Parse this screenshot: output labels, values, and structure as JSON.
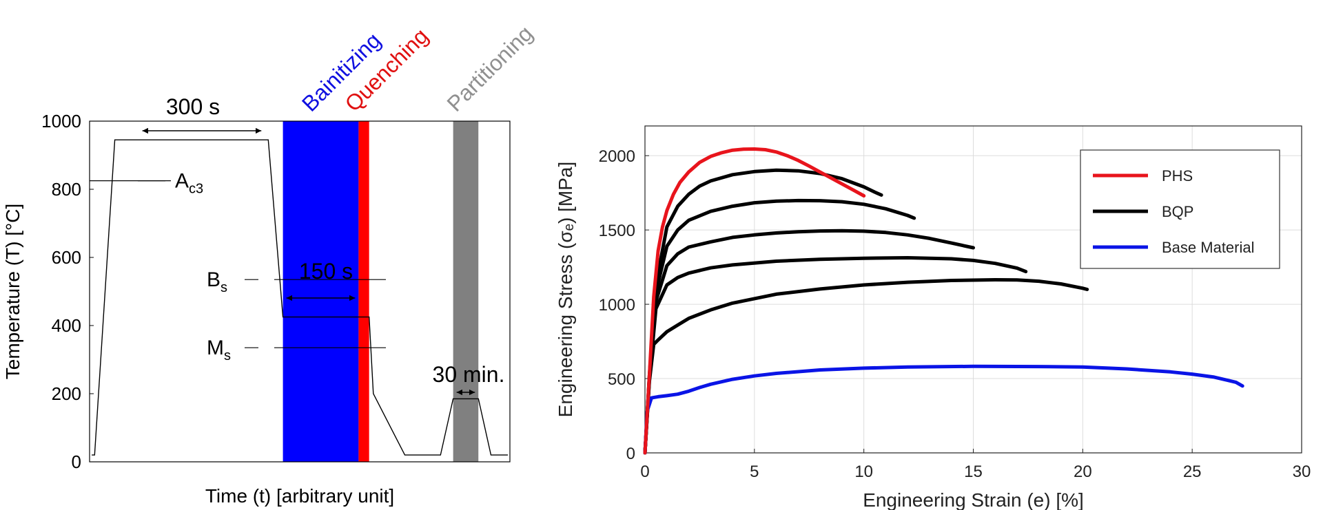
{
  "chart_data": [
    {
      "type": "line",
      "xlabel": "Time (t) [arbitrary unit]",
      "ylabel": "Temperature (T) [°C]",
      "ylim": [
        0,
        1000
      ],
      "yticks": [
        0,
        200,
        400,
        600,
        800,
        1000
      ],
      "xlim": [
        0,
        100
      ],
      "phases": [
        {
          "name": "Bainitizing",
          "x_start": 46.0,
          "x_end": 64.0,
          "color": "#0000ff",
          "label_color": "#1010e0"
        },
        {
          "name": "Quenching",
          "x_start": 64.0,
          "x_end": 66.5,
          "color": "#ff0000",
          "label_color": "#e01010"
        },
        {
          "name": "Partitioning",
          "x_start": 86.5,
          "x_end": 92.5,
          "color": "#808080",
          "label_color": "#909090"
        }
      ],
      "temperature_profile": {
        "x": [
          0.5,
          1.2,
          6.0,
          42.5,
          46.0,
          66.5,
          67.5,
          75.0,
          83.5,
          86.5,
          92.5,
          95.5,
          99.5
        ],
        "y": [
          20,
          20,
          945,
          945,
          425,
          425,
          200,
          20,
          20,
          185,
          185,
          20,
          20
        ]
      },
      "reference_lines": [
        {
          "label": "A",
          "subscript": "c3",
          "y": 825
        },
        {
          "label": "B",
          "subscript": "s",
          "y": 535
        },
        {
          "label": "M",
          "subscript": "s",
          "y": 335
        }
      ],
      "annotations": [
        {
          "text": "300 s",
          "x_start": 6.0,
          "x_end": 42.5,
          "y": 970
        },
        {
          "text": "150 s",
          "x_start": 46.0,
          "x_end": 64.0,
          "y": 480
        },
        {
          "text": "30 min.",
          "x_start": 86.5,
          "x_end": 92.5,
          "y": 205
        }
      ]
    },
    {
      "type": "line",
      "xlabel": "Engineering Strain (e) [%]",
      "ylabel": "Engineering Stress (σₑ) [MPa]",
      "xlim": [
        0,
        30
      ],
      "ylim": [
        0,
        2200
      ],
      "xticks": [
        0,
        5,
        10,
        15,
        20,
        25,
        30
      ],
      "yticks": [
        0,
        500,
        1000,
        1500,
        2000
      ],
      "grid": true,
      "legend_position": "top-right",
      "legend": [
        {
          "name": "PHS",
          "color": "#e8141c"
        },
        {
          "name": "BQP",
          "color": "#000000"
        },
        {
          "name": "Base Material",
          "color": "#0a14e6"
        }
      ],
      "series": [
        {
          "legend": "PHS",
          "color": "#e8141c",
          "x": [
            0,
            0.2,
            0.4,
            0.6,
            0.8,
            1.0,
            1.3,
            1.6,
            2.0,
            2.5,
            3.0,
            3.5,
            4.0,
            4.5,
            5.0,
            5.5,
            6.0,
            6.5,
            7.0,
            7.5,
            8.0,
            8.5,
            9.0,
            9.5,
            10.0
          ],
          "y": [
            0,
            520,
            1050,
            1360,
            1520,
            1630,
            1740,
            1820,
            1890,
            1955,
            1995,
            2020,
            2037,
            2044,
            2045,
            2040,
            2025,
            2000,
            1968,
            1930,
            1890,
            1850,
            1810,
            1770,
            1730
          ]
        },
        {
          "legend": "BQP",
          "color": "#000000",
          "x": [
            0,
            0.2,
            0.5,
            1.0,
            1.5,
            2.0,
            2.5,
            3.0,
            4.0,
            5.0,
            6.0,
            7.0,
            8.0,
            9.0,
            10.0,
            10.5,
            10.8
          ],
          "y": [
            0,
            520,
            1130,
            1520,
            1660,
            1740,
            1795,
            1830,
            1872,
            1893,
            1902,
            1898,
            1880,
            1845,
            1790,
            1755,
            1735
          ]
        },
        {
          "legend": "BQP",
          "color": "#000000",
          "x": [
            0,
            0.2,
            0.5,
            1.0,
            1.5,
            2.0,
            3.0,
            4.0,
            5.0,
            6.0,
            7.0,
            8.0,
            9.0,
            10.0,
            11.0,
            12.0,
            12.3
          ],
          "y": [
            0,
            510,
            1080,
            1390,
            1500,
            1565,
            1625,
            1660,
            1683,
            1694,
            1698,
            1697,
            1690,
            1673,
            1643,
            1598,
            1580
          ]
        },
        {
          "legend": "BQP",
          "color": "#000000",
          "x": [
            0,
            0.2,
            0.5,
            1.0,
            1.5,
            2.0,
            3.0,
            4.0,
            5.0,
            6.0,
            7.0,
            8.0,
            9.0,
            10.0,
            11.0,
            12.0,
            13.0,
            14.0,
            15.0
          ],
          "y": [
            0,
            500,
            1020,
            1260,
            1340,
            1385,
            1420,
            1450,
            1467,
            1480,
            1488,
            1493,
            1495,
            1492,
            1483,
            1467,
            1443,
            1412,
            1380
          ]
        },
        {
          "legend": "BQP",
          "color": "#000000",
          "x": [
            0,
            0.2,
            0.5,
            1.0,
            1.5,
            2.0,
            3.0,
            4.0,
            6.0,
            8.0,
            10.0,
            12.0,
            14.0,
            15.0,
            16.0,
            17.0,
            17.4
          ],
          "y": [
            0,
            490,
            970,
            1130,
            1180,
            1210,
            1245,
            1265,
            1290,
            1303,
            1310,
            1313,
            1306,
            1295,
            1275,
            1243,
            1220
          ]
        },
        {
          "legend": "BQP",
          "color": "#000000",
          "x": [
            0,
            0.2,
            0.4,
            0.6,
            1.0,
            1.5,
            2.0,
            3.0,
            4.0,
            6.0,
            8.0,
            10.0,
            12.0,
            14.0,
            16.0,
            17.0,
            18.0,
            19.0,
            20.0,
            20.2
          ],
          "y": [
            0,
            480,
            730,
            760,
            815,
            860,
            905,
            962,
            1008,
            1068,
            1103,
            1130,
            1148,
            1160,
            1165,
            1164,
            1155,
            1137,
            1108,
            1100
          ]
        },
        {
          "legend": "Base Material",
          "color": "#0a14e6",
          "x": [
            0,
            0.1,
            0.3,
            0.6,
            1.0,
            1.5,
            2.0,
            2.5,
            3.0,
            4.0,
            5.0,
            6.0,
            8.0,
            10.0,
            12.0,
            15.0,
            18.0,
            20.0,
            22.0,
            24.0,
            25.0,
            26.0,
            27.0,
            27.3
          ],
          "y": [
            0,
            280,
            370,
            378,
            385,
            395,
            415,
            440,
            462,
            495,
            518,
            535,
            558,
            570,
            578,
            582,
            581,
            578,
            565,
            545,
            530,
            510,
            475,
            450
          ]
        }
      ]
    }
  ]
}
